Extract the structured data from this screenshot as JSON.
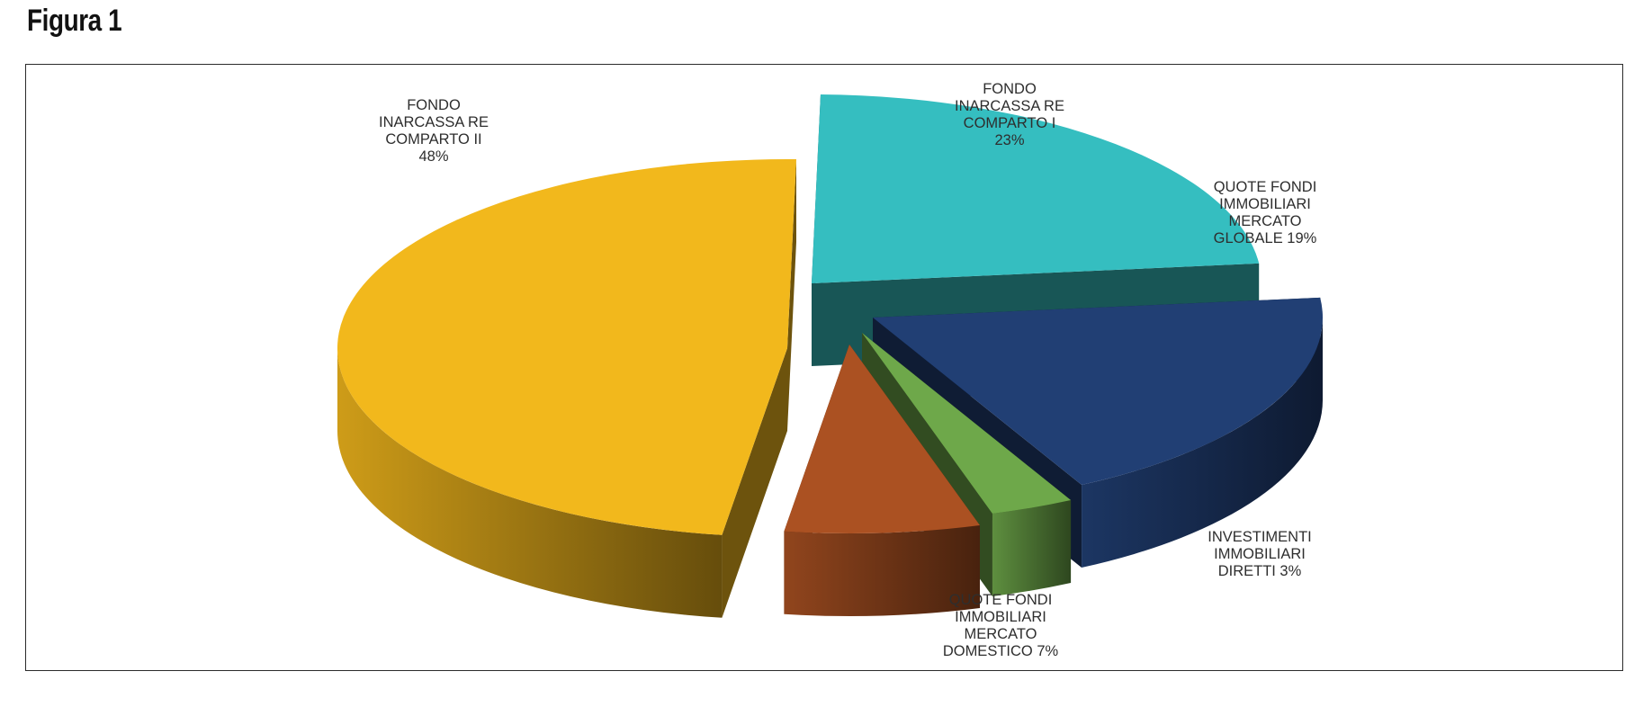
{
  "figure_title": "Figura 1",
  "chart_data": {
    "type": "pie",
    "title": "",
    "three_d": true,
    "exploded": true,
    "legend": "none",
    "slices": [
      {
        "label_lines": [
          "FONDO",
          "INARCASSA RE",
          "COMPARTO I",
          "23%"
        ],
        "value": 23,
        "color": "#35BEC0"
      },
      {
        "label_lines": [
          "QUOTE FONDI",
          "IMMOBILIARI",
          "MERCATO",
          "GLOBALE 19%"
        ],
        "value": 19,
        "color": "#213F74"
      },
      {
        "label_lines": [
          "INVESTIMENTI",
          "IMMOBILIARI",
          "DIRETTI  3%"
        ],
        "value": 3,
        "color": "#6EA84A"
      },
      {
        "label_lines": [
          "QUOTE FONDI",
          "IMMOBILIARI",
          "MERCATO",
          "DOMESTICO  7%"
        ],
        "value": 7,
        "color": "#AB5122"
      },
      {
        "label_lines": [
          "FONDO",
          "INARCASSA RE",
          "COMPARTO II",
          "48%"
        ],
        "value": 48,
        "color": "#F2B81C"
      }
    ]
  }
}
